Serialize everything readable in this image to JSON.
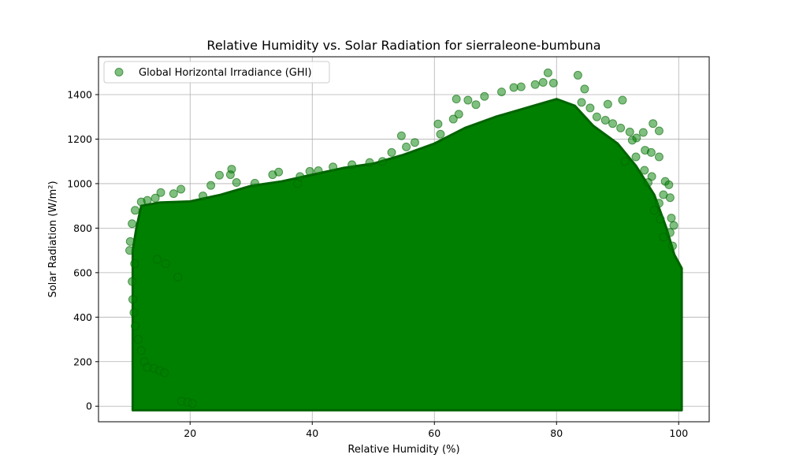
{
  "chart_data": {
    "type": "scatter",
    "title": "Relative Humidity vs. Solar Radiation for sierraleone-bumbuna",
    "xlabel": "Relative Humidity (%)",
    "ylabel": "Solar Radiation (W/m²)",
    "xlim": [
      5.0,
      105.0
    ],
    "ylim": [
      -70,
      1570
    ],
    "x_ticks": [
      20,
      40,
      60,
      80,
      100
    ],
    "y_ticks": [
      0,
      200,
      400,
      600,
      800,
      1000,
      1200,
      1400
    ],
    "grid": true,
    "legend_position": "top-left",
    "series": [
      {
        "name": "Global Horizontal Irradiance (GHI)",
        "color": "#008000",
        "alpha": 0.5,
        "envelope": [
          [
            10.6,
            0
          ],
          [
            10.6,
            700
          ],
          [
            11.2,
            800
          ],
          [
            12,
            900
          ],
          [
            15,
            915
          ],
          [
            20,
            920
          ],
          [
            25,
            950
          ],
          [
            30,
            990
          ],
          [
            35,
            1010
          ],
          [
            40,
            1040
          ],
          [
            45,
            1070
          ],
          [
            50,
            1090
          ],
          [
            55,
            1130
          ],
          [
            60,
            1180
          ],
          [
            65,
            1250
          ],
          [
            70,
            1300
          ],
          [
            75,
            1340
          ],
          [
            80,
            1380
          ],
          [
            83,
            1350
          ],
          [
            86,
            1260
          ],
          [
            90,
            1180
          ],
          [
            93,
            1080
          ],
          [
            96,
            950
          ],
          [
            98,
            800
          ],
          [
            99.3,
            680
          ],
          [
            100.5,
            620
          ],
          [
            100.5,
            0
          ]
        ],
        "points": [
          [
            78.6,
            1498
          ],
          [
            83.5,
            1487
          ],
          [
            79.5,
            1452
          ],
          [
            77.8,
            1455
          ],
          [
            76.5,
            1445
          ],
          [
            74.2,
            1435
          ],
          [
            84.6,
            1425
          ],
          [
            73.0,
            1432
          ],
          [
            71.0,
            1412
          ],
          [
            63.6,
            1380
          ],
          [
            65.5,
            1375
          ],
          [
            68.2,
            1392
          ],
          [
            66.8,
            1355
          ],
          [
            88.4,
            1357
          ],
          [
            90.8,
            1375
          ],
          [
            84.1,
            1365
          ],
          [
            85.5,
            1340
          ],
          [
            86.6,
            1300
          ],
          [
            88.0,
            1285
          ],
          [
            89.2,
            1270
          ],
          [
            90.5,
            1250
          ],
          [
            92.0,
            1232
          ],
          [
            95.8,
            1270
          ],
          [
            96.8,
            1237
          ],
          [
            94.2,
            1230
          ],
          [
            93.1,
            1205
          ],
          [
            92.4,
            1195
          ],
          [
            94.5,
            1150
          ],
          [
            95.5,
            1140
          ],
          [
            93.0,
            1120
          ],
          [
            96.8,
            1120
          ],
          [
            91.2,
            1100
          ],
          [
            94.4,
            1060
          ],
          [
            95.6,
            1032
          ],
          [
            95.0,
            1005
          ],
          [
            97.8,
            1010
          ],
          [
            98.4,
            995
          ],
          [
            97.5,
            950
          ],
          [
            98.6,
            937
          ],
          [
            96.8,
            912
          ],
          [
            96.0,
            880
          ],
          [
            97.0,
            840
          ],
          [
            98.8,
            845
          ],
          [
            99.2,
            812
          ],
          [
            98.6,
            780
          ],
          [
            97.5,
            760
          ],
          [
            99.0,
            720
          ],
          [
            60.6,
            1268
          ],
          [
            63.1,
            1290
          ],
          [
            64.0,
            1312
          ],
          [
            61.0,
            1222
          ],
          [
            56.8,
            1185
          ],
          [
            54.6,
            1215
          ],
          [
            55.4,
            1165
          ],
          [
            53.0,
            1140
          ],
          [
            49.4,
            1095
          ],
          [
            51.5,
            1100
          ],
          [
            46.5,
            1085
          ],
          [
            43.4,
            1075
          ],
          [
            41.0,
            1058
          ],
          [
            39.6,
            1055
          ],
          [
            38.0,
            1032
          ],
          [
            37.6,
            1000
          ],
          [
            34.5,
            1052
          ],
          [
            33.5,
            1040
          ],
          [
            30.6,
            1002
          ],
          [
            27.6,
            1005
          ],
          [
            26.8,
            1065
          ],
          [
            26.6,
            1040
          ],
          [
            24.8,
            1038
          ],
          [
            23.4,
            992
          ],
          [
            22.1,
            945
          ],
          [
            18.5,
            975
          ],
          [
            17.3,
            955
          ],
          [
            15.2,
            960
          ],
          [
            14.3,
            935
          ],
          [
            13.0,
            925
          ],
          [
            12.0,
            918
          ],
          [
            11.0,
            880
          ],
          [
            10.5,
            820
          ],
          [
            10.2,
            740
          ],
          [
            10.1,
            700
          ],
          [
            10.9,
            640
          ],
          [
            10.5,
            560
          ],
          [
            10.6,
            480
          ],
          [
            10.8,
            420
          ],
          [
            11.0,
            360
          ],
          [
            11.5,
            300
          ],
          [
            12.0,
            250
          ],
          [
            12.5,
            200
          ],
          [
            13.0,
            175
          ],
          [
            14.1,
            170
          ],
          [
            15.0,
            160
          ],
          [
            15.8,
            150
          ],
          [
            18.6,
            22
          ],
          [
            19.6,
            18
          ],
          [
            20.4,
            12
          ],
          [
            14.6,
            660
          ],
          [
            16.0,
            640
          ],
          [
            18.0,
            580
          ]
        ]
      }
    ]
  }
}
